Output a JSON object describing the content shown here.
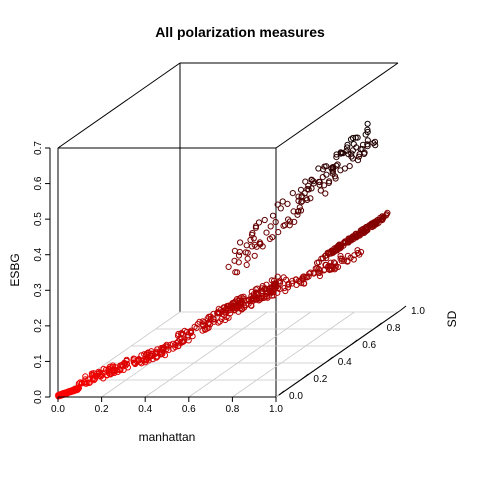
{
  "chart_data": {
    "type": "scatter3d",
    "title": "All polarization measures",
    "xlabel": "manhattan",
    "ylabel": "SD",
    "zlabel": "ESBG",
    "xlim": [
      0,
      1
    ],
    "ylim": [
      0,
      1
    ],
    "zlim": [
      0,
      0.7
    ],
    "xticks": [
      "0.0",
      "0.2",
      "0.4",
      "0.6",
      "0.8",
      "1.0"
    ],
    "yticks": [
      "0.0",
      "0.2",
      "0.4",
      "0.6",
      "0.8",
      "1.0"
    ],
    "zticks": [
      "0.0",
      "0.1",
      "0.2",
      "0.3",
      "0.4",
      "0.5",
      "0.6",
      "0.7"
    ],
    "color_low": "#ff0000",
    "color_high": "#000000",
    "marker": "open-circle",
    "box": true,
    "grid_floor": true,
    "clusters": [
      {
        "x": [
          0.0,
          0.08
        ],
        "y": [
          0.0,
          0.03
        ],
        "z": [
          0.0,
          0.02
        ]
      },
      {
        "x": [
          0.08,
          0.45
        ],
        "y": [
          0.02,
          0.15
        ],
        "z": [
          0.02,
          0.12
        ]
      },
      {
        "x": [
          0.45,
          0.8
        ],
        "y": [
          0.1,
          0.45
        ],
        "z": [
          0.1,
          0.25
        ]
      },
      {
        "x": [
          0.55,
          1.0
        ],
        "y": [
          0.2,
          0.75
        ],
        "z": [
          0.15,
          0.25
        ]
      },
      {
        "x": [
          0.6,
          1.0
        ],
        "y": [
          0.3,
          0.9
        ],
        "z": [
          0.25,
          0.6
        ]
      },
      {
        "x": [
          0.9,
          1.0
        ],
        "y": [
          0.5,
          0.95
        ],
        "z": [
          0.25,
          0.3
        ]
      }
    ]
  }
}
